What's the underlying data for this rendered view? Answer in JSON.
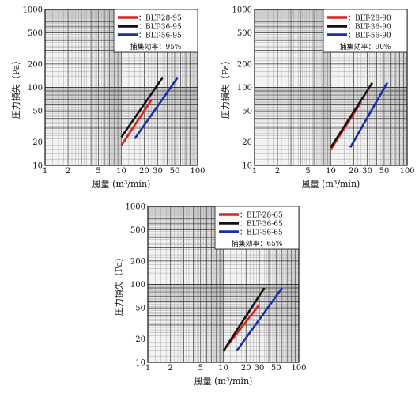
{
  "chart_data": [
    {
      "type": "line",
      "xlabel": "風量 (m³/min)",
      "ylabel": "圧力損失（Pa）",
      "xscale": "log",
      "yscale": "log",
      "xlim": [
        1,
        100
      ],
      "ylim": [
        10,
        1000
      ],
      "x_ticks": [
        "1",
        "2",
        "5",
        "10",
        "20",
        "30",
        "50",
        "100"
      ],
      "y_ticks": [
        "10",
        "20",
        "50",
        "100",
        "200",
        "500",
        "1000"
      ],
      "efficiency_label": "捕集効率：95%",
      "legend_position": "top-right",
      "series": [
        {
          "name": "BLT-28-95",
          "color": "#e02020",
          "x": [
            10,
            25
          ],
          "y": [
            18,
            70
          ]
        },
        {
          "name": "BLT-36-95",
          "color": "#111111",
          "x": [
            10,
            35
          ],
          "y": [
            23,
            135
          ]
        },
        {
          "name": "BLT-56-95",
          "color": "#1a2ea8",
          "x": [
            15,
            55
          ],
          "y": [
            22,
            135
          ]
        }
      ]
    },
    {
      "type": "line",
      "xlabel": "風量 (m³/min)",
      "ylabel": "圧力損失（Pa）",
      "xscale": "log",
      "yscale": "log",
      "xlim": [
        1,
        100
      ],
      "ylim": [
        10,
        1000
      ],
      "x_ticks": [
        "1",
        "2",
        "5",
        "10",
        "20",
        "30",
        "50",
        "100"
      ],
      "y_ticks": [
        "10",
        "20",
        "50",
        "100",
        "200",
        "500",
        "1000"
      ],
      "efficiency_label": "捕集効率：90%",
      "legend_position": "top-right",
      "series": [
        {
          "name": "BLT-28-90",
          "color": "#e02020",
          "x": [
            10,
            25
          ],
          "y": [
            16,
            65
          ]
        },
        {
          "name": "BLT-36-90",
          "color": "#111111",
          "x": [
            10,
            35
          ],
          "y": [
            17,
            115
          ]
        },
        {
          "name": "BLT-56-90",
          "color": "#1a2ea8",
          "x": [
            18,
            55
          ],
          "y": [
            17,
            115
          ]
        }
      ]
    },
    {
      "type": "line",
      "xlabel": "風量 (m³/min)",
      "ylabel": "圧力損失（Pa）",
      "xscale": "log",
      "yscale": "log",
      "xlim": [
        1,
        100
      ],
      "ylim": [
        10,
        1000
      ],
      "x_ticks": [
        "1",
        "2",
        "5",
        "10",
        "20",
        "30",
        "50",
        "100"
      ],
      "y_ticks": [
        "10",
        "20",
        "50",
        "100",
        "200",
        "500",
        "1000"
      ],
      "efficiency_label": "捕集効率：65%",
      "legend_position": "top-right",
      "series": [
        {
          "name": "BLT-28-65",
          "color": "#e02020",
          "x": [
            10,
            30
          ],
          "y": [
            14,
            55
          ]
        },
        {
          "name": "BLT-36-65",
          "color": "#111111",
          "x": [
            10,
            35
          ],
          "y": [
            14,
            90
          ]
        },
        {
          "name": "BLT-56-65",
          "color": "#1a2ea8",
          "x": [
            15,
            60
          ],
          "y": [
            14,
            90
          ]
        }
      ]
    }
  ]
}
